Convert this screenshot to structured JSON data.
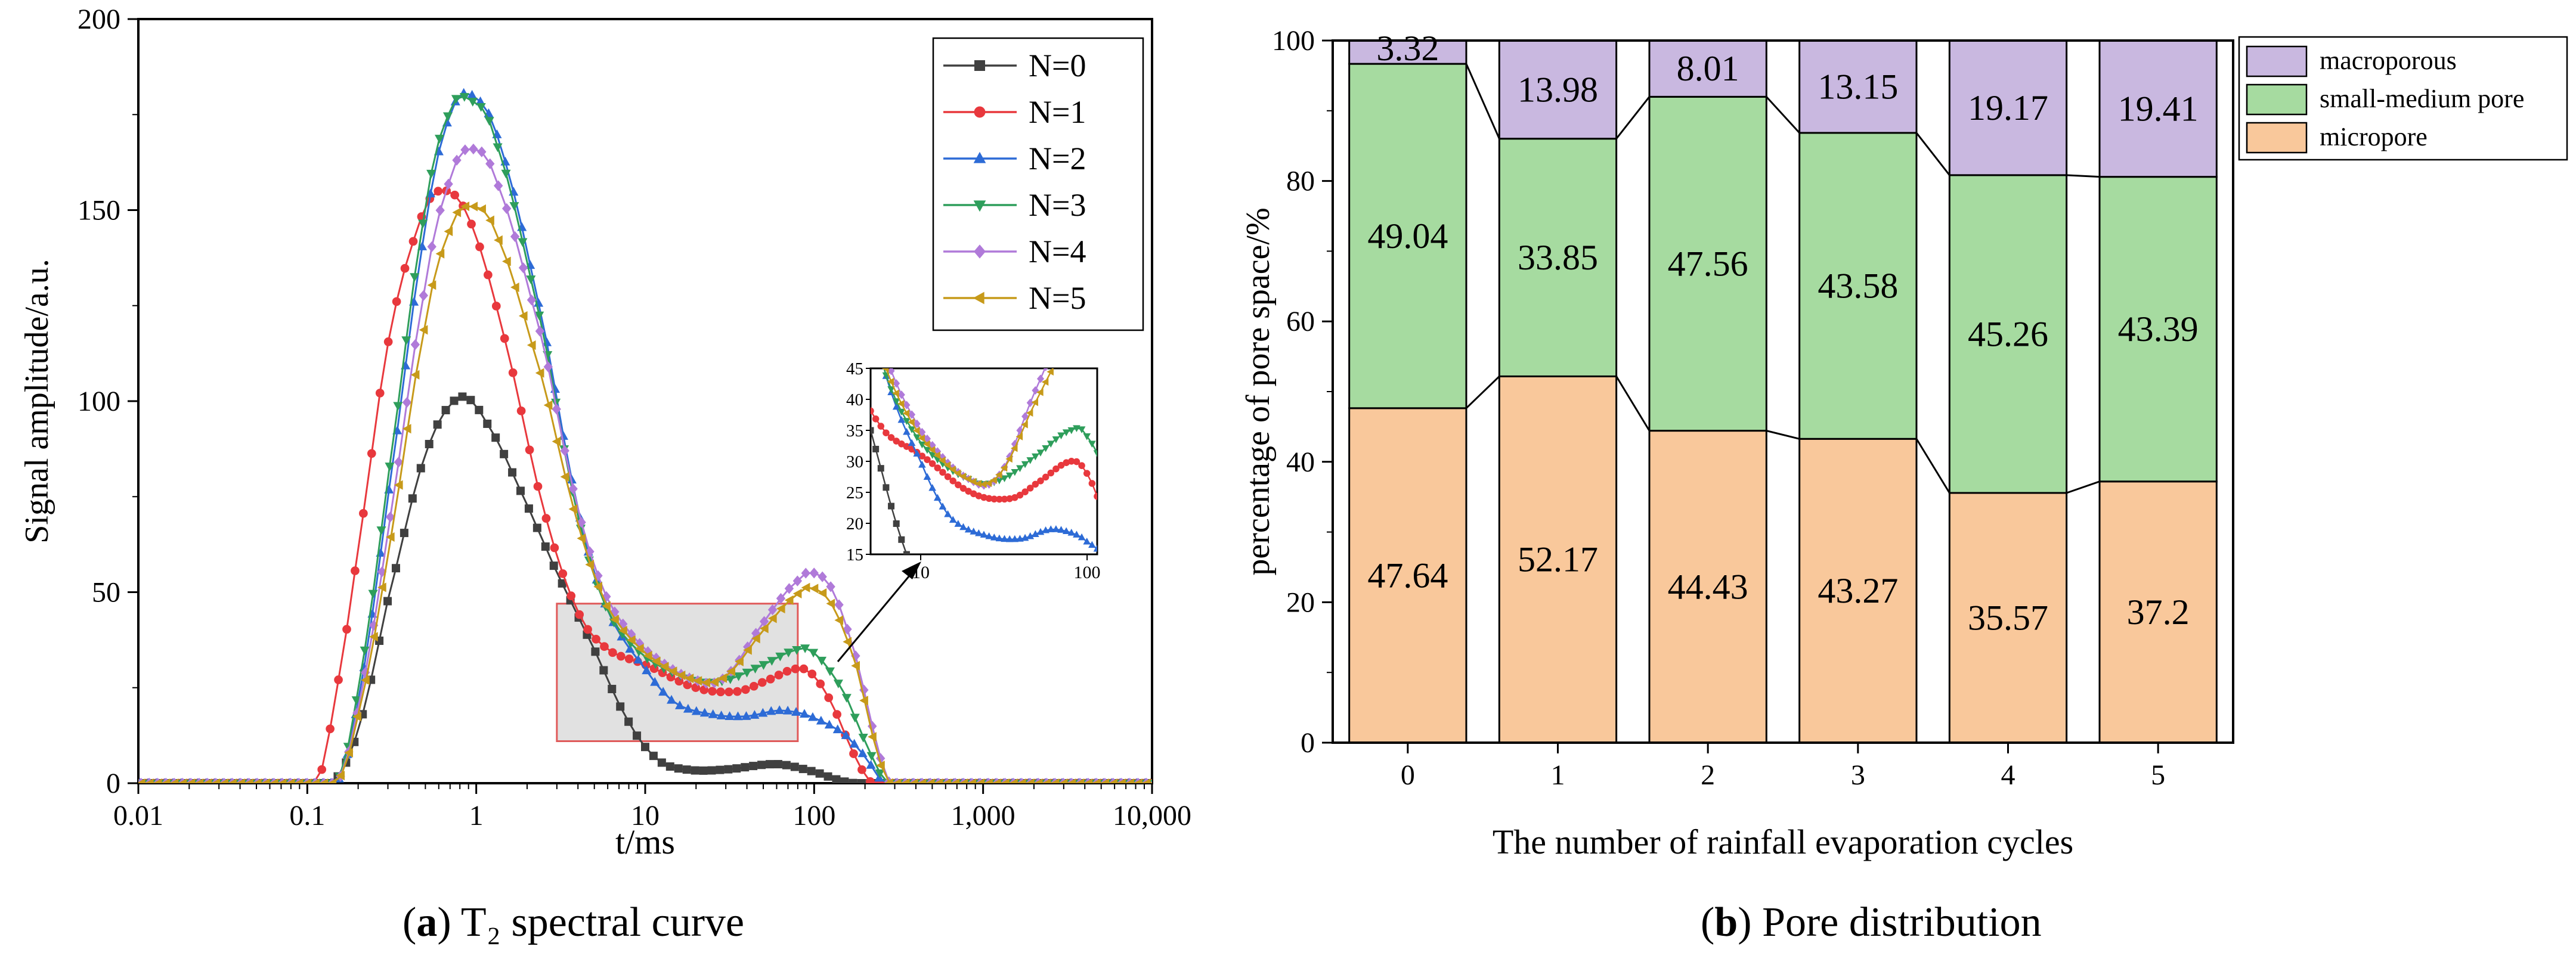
{
  "chart_data": [
    {
      "panel": "a",
      "type": "line",
      "xscale": "log",
      "xlabel": "t/ms",
      "ylabel": "Signal amplitude/a.u.",
      "xlim": [
        0.01,
        10000
      ],
      "ylim": [
        0,
        200
      ],
      "x_ticks": [
        0.01,
        0.1,
        1,
        10,
        100,
        1000,
        10000
      ],
      "x_tick_labels": [
        "0.01",
        "0.1",
        "1",
        "10",
        "100",
        "1,000",
        "10,000"
      ],
      "y_ticks": [
        0,
        50,
        100,
        150,
        200
      ],
      "y_tick_labels": [
        "0",
        "50",
        "100",
        "150",
        "200"
      ],
      "legend_position": "top-right",
      "series": [
        {
          "name": "N=0",
          "color": "#404040",
          "marker": "square",
          "points": [
            [
              0.14,
              0
            ],
            [
              0.2,
              14
            ],
            [
              0.3,
              48
            ],
            [
              0.5,
              86
            ],
            [
              0.8,
              101
            ],
            [
              1.2,
              93
            ],
            [
              2,
              73
            ],
            [
              3,
              55
            ],
            [
              5,
              35
            ],
            [
              8,
              16
            ],
            [
              12,
              6
            ],
            [
              18,
              3.5
            ],
            [
              30,
              3.6
            ],
            [
              60,
              5
            ],
            [
              100,
              3
            ],
            [
              150,
              0.5
            ],
            [
              180,
              0
            ]
          ]
        },
        {
          "name": "N=1",
          "color": "#e8383d",
          "marker": "circle",
          "points": [
            [
              0.115,
              0
            ],
            [
              0.15,
              25
            ],
            [
              0.2,
              62
            ],
            [
              0.3,
              115
            ],
            [
              0.45,
              145
            ],
            [
              0.6,
              155
            ],
            [
              0.9,
              148
            ],
            [
              1.5,
              115
            ],
            [
              2.5,
              72
            ],
            [
              4,
              45
            ],
            [
              6,
              35
            ],
            [
              10,
              31
            ],
            [
              20,
              25
            ],
            [
              35,
              24
            ],
            [
              50,
              26.5
            ],
            [
              80,
              30
            ],
            [
              100,
              28
            ],
            [
              130,
              20
            ],
            [
              170,
              8
            ],
            [
              220,
              0
            ]
          ]
        },
        {
          "name": "N=2",
          "color": "#2d6bd6",
          "marker": "triangle-up",
          "points": [
            [
              0.15,
              0
            ],
            [
              0.2,
              22
            ],
            [
              0.3,
              75
            ],
            [
              0.5,
              145
            ],
            [
              0.7,
              175
            ],
            [
              0.95,
              180
            ],
            [
              1.4,
              166
            ],
            [
              2.5,
              120
            ],
            [
              4,
              72
            ],
            [
              6,
              45
            ],
            [
              10,
              30
            ],
            [
              15,
              21
            ],
            [
              25,
              18
            ],
            [
              40,
              17.5
            ],
            [
              60,
              19
            ],
            [
              80,
              18.5
            ],
            [
              100,
              17
            ],
            [
              150,
              13
            ],
            [
              200,
              7
            ],
            [
              260,
              0
            ]
          ]
        },
        {
          "name": "N=3",
          "color": "#2e9e5b",
          "marker": "triangle-down",
          "points": [
            [
              0.15,
              0
            ],
            [
              0.2,
              25
            ],
            [
              0.3,
              80
            ],
            [
              0.5,
              150
            ],
            [
              0.7,
              176
            ],
            [
              0.9,
              179
            ],
            [
              1.3,
              168
            ],
            [
              2.5,
              118
            ],
            [
              4,
              70
            ],
            [
              6,
              45
            ],
            [
              10,
              33
            ],
            [
              20,
              27
            ],
            [
              30,
              27
            ],
            [
              50,
              31
            ],
            [
              80,
              35
            ],
            [
              100,
              34
            ],
            [
              150,
              24
            ],
            [
              200,
              11
            ],
            [
              270,
              0
            ]
          ]
        },
        {
          "name": "N=4",
          "color": "#b07ad9",
          "marker": "diamond",
          "points": [
            [
              0.15,
              0
            ],
            [
              0.2,
              20
            ],
            [
              0.3,
              66
            ],
            [
              0.5,
              130
            ],
            [
              0.7,
              158
            ],
            [
              0.9,
              166
            ],
            [
              1.3,
              158
            ],
            [
              2.5,
              115
            ],
            [
              4,
              72
            ],
            [
              6,
              48
            ],
            [
              10,
              35
            ],
            [
              20,
              27
            ],
            [
              30,
              28
            ],
            [
              50,
              42
            ],
            [
              80,
              53
            ],
            [
              100,
              55
            ],
            [
              130,
              50
            ],
            [
              180,
              32
            ],
            [
              230,
              12
            ],
            [
              280,
              0
            ]
          ]
        },
        {
          "name": "N=5",
          "color": "#c79a1a",
          "marker": "triangle-left",
          "points": [
            [
              0.15,
              0
            ],
            [
              0.2,
              18
            ],
            [
              0.3,
              60
            ],
            [
              0.5,
              120
            ],
            [
              0.7,
              145
            ],
            [
              0.9,
              151
            ],
            [
              1.3,
              144
            ],
            [
              2.5,
              105
            ],
            [
              4,
              68
            ],
            [
              6,
              46
            ],
            [
              10,
              34
            ],
            [
              20,
              27
            ],
            [
              30,
              28
            ],
            [
              50,
              40
            ],
            [
              80,
              49.5
            ],
            [
              100,
              51
            ],
            [
              130,
              46
            ],
            [
              180,
              30
            ],
            [
              230,
              10
            ],
            [
              280,
              0
            ]
          ]
        }
      ],
      "inset": {
        "xlim": [
          5,
          115
        ],
        "ylim": [
          15,
          45
        ],
        "x_tick_labels": [
          "10",
          "100"
        ],
        "y_tick_labels": [
          "15",
          "20",
          "25",
          "30",
          "35",
          "40",
          "45"
        ]
      },
      "highlight_region": {
        "x": [
          3,
          80
        ],
        "y": [
          11,
          47
        ]
      },
      "caption_bold": "a",
      "caption": "T₂ spectral curve"
    },
    {
      "panel": "b",
      "type": "bar",
      "stacked": true,
      "xlabel": "The number of rainfall evaporation cycles",
      "ylabel": "percentage of pore space/%",
      "ylim": [
        0,
        100
      ],
      "y_ticks": [
        0,
        20,
        40,
        60,
        80,
        100
      ],
      "y_tick_labels": [
        "0",
        "20",
        "40",
        "60",
        "80",
        "100"
      ],
      "categories": [
        "0",
        "1",
        "2",
        "3",
        "4",
        "5"
      ],
      "legend_position": "top-right",
      "series": [
        {
          "name": "micropore",
          "color": "#f9c89b",
          "values": [
            47.64,
            52.17,
            44.43,
            43.27,
            35.57,
            37.2
          ],
          "labels": [
            "47.64",
            "52.17",
            "44.43",
            "43.27",
            "35.57",
            "37.2"
          ]
        },
        {
          "name": "small-medium pore",
          "color": "#a6dba0",
          "values": [
            49.04,
            33.85,
            47.56,
            43.58,
            45.26,
            43.39
          ],
          "labels": [
            "49.04",
            "33.85",
            "47.56",
            "43.58",
            "45.26",
            "43.39"
          ]
        },
        {
          "name": "macroporous",
          "color": "#c9b8e0",
          "values": [
            3.32,
            13.98,
            8.01,
            13.15,
            19.17,
            19.41
          ],
          "labels": [
            "3.32",
            "13.98",
            "8.01",
            "13.15",
            "19.17",
            "19.41"
          ]
        }
      ],
      "legend_order": [
        "macroporous",
        "small-medium pore",
        "micropore"
      ],
      "caption_bold": "b",
      "caption": "Pore distribution"
    }
  ]
}
